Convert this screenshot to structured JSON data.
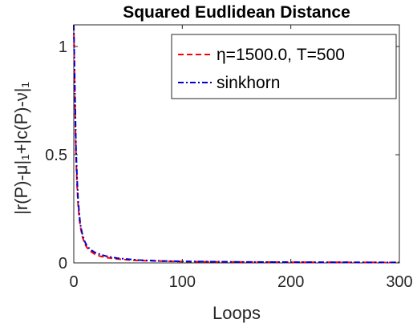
{
  "chart_data": {
    "type": "line",
    "title": "Squared Eudlidean Distance",
    "xlabel": "Loops",
    "ylabel": "|r(P)-μ|₁+|c(P)-ν|₁",
    "xlim": [
      0,
      300
    ],
    "ylim": [
      0,
      1.1
    ],
    "xticks": [
      0,
      100,
      200,
      300
    ],
    "xtick_labels": [
      "0",
      "100",
      "200",
      "300"
    ],
    "yticks": [
      0,
      0.5,
      1
    ],
    "ytick_labels": [
      "0",
      "0.5",
      "1"
    ],
    "grid": false,
    "legend_position": "top-right",
    "series": [
      {
        "name": "η=1500.0, T=500",
        "color": "#ff0000",
        "style": "dashed",
        "x": [
          0,
          1,
          2,
          3,
          4,
          5,
          6,
          8,
          10,
          12,
          15,
          18,
          20,
          25,
          30,
          40,
          50,
          60,
          80,
          100,
          150,
          200,
          250,
          300
        ],
        "y": [
          1.1,
          0.75,
          0.5,
          0.36,
          0.27,
          0.21,
          0.17,
          0.12,
          0.09,
          0.072,
          0.055,
          0.045,
          0.038,
          0.03,
          0.025,
          0.018,
          0.014,
          0.011,
          0.008,
          0.006,
          0.004,
          0.003,
          0.0025,
          0.002
        ]
      },
      {
        "name": "sinkhorn",
        "color": "#0000cc",
        "style": "dashdot",
        "x": [
          0,
          1,
          2,
          3,
          4,
          5,
          6,
          8,
          10,
          12,
          15,
          18,
          20,
          25,
          30,
          40,
          50,
          60,
          80,
          100,
          150,
          200,
          250,
          300
        ],
        "y": [
          1.1,
          0.8,
          0.54,
          0.39,
          0.29,
          0.23,
          0.18,
          0.13,
          0.1,
          0.08,
          0.063,
          0.053,
          0.047,
          0.038,
          0.031,
          0.022,
          0.017,
          0.013,
          0.009,
          0.007,
          0.0045,
          0.0033,
          0.0027,
          0.0022
        ]
      }
    ]
  }
}
